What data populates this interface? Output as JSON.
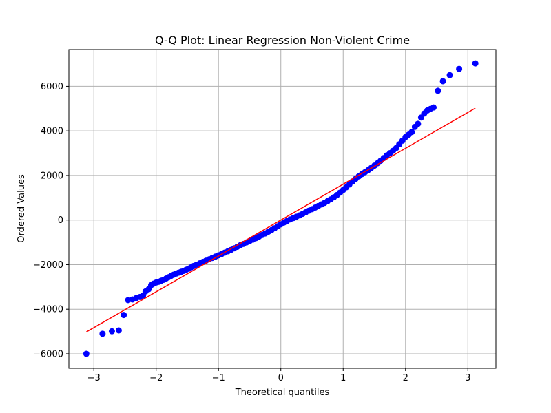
{
  "chart_data": {
    "type": "scatter",
    "title": "Q-Q Plot: Linear Regression Non-Violent Crime",
    "xlabel": "Theoretical quantiles",
    "ylabel": "Ordered Values",
    "xlim": [
      -3.4,
      3.45
    ],
    "ylim": [
      -6650,
      7650
    ],
    "xticks": [
      -3,
      -2,
      -1,
      0,
      1,
      2,
      3
    ],
    "xtick_labels": [
      "−3",
      "−2",
      "−1",
      "0",
      "1",
      "2",
      "3"
    ],
    "yticks": [
      -6000,
      -4000,
      -2000,
      0,
      2000,
      4000,
      6000
    ],
    "ytick_labels": [
      "−6000",
      "−4000",
      "−2000",
      "0",
      "2000",
      "4000",
      "6000"
    ],
    "grid": true,
    "series": [
      {
        "kind": "points",
        "color": "#0000ff",
        "points": [
          [
            -3.12,
            -6000
          ],
          [
            -2.86,
            -5100
          ],
          [
            -2.71,
            -4990
          ],
          [
            -2.6,
            -4950
          ],
          [
            -2.52,
            -4260
          ],
          [
            -2.45,
            -3590
          ],
          [
            -2.38,
            -3560
          ],
          [
            -2.32,
            -3500
          ],
          [
            -2.26,
            -3450
          ],
          [
            -2.21,
            -3380
          ],
          [
            -2.17,
            -3200
          ],
          [
            -2.12,
            -3100
          ],
          [
            -2.08,
            -2920
          ],
          [
            -2.04,
            -2850
          ],
          [
            -2.0,
            -2800
          ],
          [
            -1.96,
            -2770
          ],
          [
            -1.92,
            -2720
          ],
          [
            -1.88,
            -2680
          ],
          [
            -1.84,
            -2620
          ],
          [
            -1.8,
            -2560
          ],
          [
            -1.76,
            -2500
          ],
          [
            -1.72,
            -2450
          ],
          [
            -1.68,
            -2400
          ],
          [
            -1.64,
            -2360
          ],
          [
            -1.6,
            -2320
          ],
          [
            -1.56,
            -2280
          ],
          [
            -1.52,
            -2230
          ],
          [
            -1.48,
            -2180
          ],
          [
            -1.44,
            -2120
          ],
          [
            -1.4,
            -2060
          ],
          [
            -1.35,
            -2000
          ],
          [
            -1.3,
            -1940
          ],
          [
            -1.25,
            -1880
          ],
          [
            -1.2,
            -1820
          ],
          [
            -1.15,
            -1760
          ],
          [
            -1.1,
            -1700
          ],
          [
            -1.05,
            -1640
          ],
          [
            -1.0,
            -1580
          ],
          [
            -0.95,
            -1520
          ],
          [
            -0.9,
            -1460
          ],
          [
            -0.85,
            -1400
          ],
          [
            -0.8,
            -1340
          ],
          [
            -0.75,
            -1270
          ],
          [
            -0.7,
            -1200
          ],
          [
            -0.65,
            -1130
          ],
          [
            -0.6,
            -1070
          ],
          [
            -0.55,
            -1000
          ],
          [
            -0.5,
            -940
          ],
          [
            -0.45,
            -880
          ],
          [
            -0.4,
            -810
          ],
          [
            -0.35,
            -740
          ],
          [
            -0.3,
            -670
          ],
          [
            -0.25,
            -600
          ],
          [
            -0.2,
            -520
          ],
          [
            -0.15,
            -450
          ],
          [
            -0.1,
            -370
          ],
          [
            -0.05,
            -280
          ],
          [
            0.0,
            -190
          ],
          [
            0.05,
            -110
          ],
          [
            0.1,
            -40
          ],
          [
            0.15,
            30
          ],
          [
            0.2,
            90
          ],
          [
            0.25,
            150
          ],
          [
            0.3,
            210
          ],
          [
            0.35,
            280
          ],
          [
            0.4,
            350
          ],
          [
            0.45,
            420
          ],
          [
            0.5,
            490
          ],
          [
            0.55,
            560
          ],
          [
            0.6,
            630
          ],
          [
            0.65,
            700
          ],
          [
            0.7,
            770
          ],
          [
            0.75,
            850
          ],
          [
            0.8,
            930
          ],
          [
            0.85,
            1020
          ],
          [
            0.9,
            1120
          ],
          [
            0.95,
            1230
          ],
          [
            1.0,
            1350
          ],
          [
            1.05,
            1470
          ],
          [
            1.1,
            1600
          ],
          [
            1.15,
            1730
          ],
          [
            1.2,
            1850
          ],
          [
            1.25,
            1960
          ],
          [
            1.3,
            2060
          ],
          [
            1.35,
            2150
          ],
          [
            1.4,
            2240
          ],
          [
            1.45,
            2340
          ],
          [
            1.5,
            2440
          ],
          [
            1.55,
            2550
          ],
          [
            1.6,
            2660
          ],
          [
            1.65,
            2780
          ],
          [
            1.7,
            2900
          ],
          [
            1.75,
            3000
          ],
          [
            1.8,
            3110
          ],
          [
            1.85,
            3230
          ],
          [
            1.9,
            3400
          ],
          [
            1.95,
            3560
          ],
          [
            2.0,
            3720
          ],
          [
            2.05,
            3830
          ],
          [
            2.1,
            3950
          ],
          [
            2.15,
            4180
          ],
          [
            2.2,
            4320
          ],
          [
            2.25,
            4600
          ],
          [
            2.3,
            4780
          ],
          [
            2.35,
            4920
          ],
          [
            2.4,
            4990
          ],
          [
            2.45,
            5050
          ],
          [
            2.52,
            5800
          ],
          [
            2.6,
            6230
          ],
          [
            2.71,
            6500
          ],
          [
            2.86,
            6780
          ],
          [
            3.12,
            7030
          ]
        ]
      },
      {
        "kind": "line",
        "color": "#ff0000",
        "points": [
          [
            -3.12,
            -5020
          ],
          [
            3.12,
            5020
          ]
        ]
      }
    ]
  }
}
